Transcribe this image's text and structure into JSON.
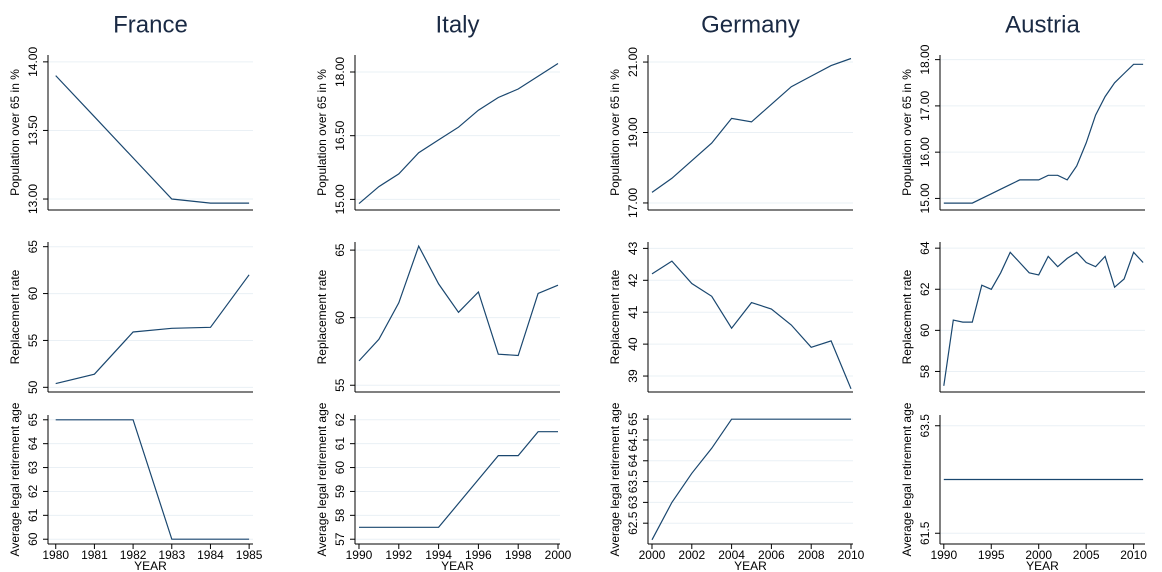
{
  "chart_data": [
    {
      "type": "line",
      "title": "France",
      "ylabel": "Population over 65 in %",
      "x": [
        1980,
        1981,
        1982,
        1983,
        1984,
        1985
      ],
      "values": [
        13.9,
        13.6,
        13.3,
        13.0,
        12.97,
        12.97
      ],
      "xlim": [
        1979.8,
        1985.1
      ],
      "ylim": [
        12.92,
        14.05
      ],
      "yticks": [
        {
          "value": 13,
          "label": "13.00"
        },
        {
          "value": 13.5,
          "label": "13.50"
        },
        {
          "value": 14,
          "label": "14.00"
        }
      ],
      "grid": true,
      "color": "#1a476f"
    },
    {
      "type": "line",
      "title": "Italy",
      "ylabel": "Population over 65 in %",
      "x": [
        1990,
        1991,
        1992,
        1993,
        1994,
        1995,
        1996,
        1997,
        1998,
        1999,
        2000
      ],
      "values": [
        14.9,
        15.3,
        15.6,
        16.1,
        16.4,
        16.7,
        17.1,
        17.4,
        17.6,
        17.9,
        18.2
      ],
      "xlim": [
        1989.8,
        2000.1
      ],
      "ylim": [
        14.75,
        18.4
      ],
      "yticks": [
        {
          "value": 15,
          "label": "15.00"
        },
        {
          "value": 16.5,
          "label": "16.50"
        },
        {
          "value": 18,
          "label": "18.00"
        }
      ],
      "grid": true,
      "color": "#1a476f"
    },
    {
      "type": "line",
      "title": "Germany",
      "ylabel": "Population over 65 in %",
      "x": [
        2000,
        2001,
        2002,
        2003,
        2004,
        2005,
        2006,
        2007,
        2008,
        2009,
        2010
      ],
      "values": [
        17.3,
        17.7,
        18.2,
        18.7,
        19.4,
        19.3,
        19.8,
        20.3,
        20.6,
        20.9,
        21.1
      ],
      "xlim": [
        1999.8,
        2010.1
      ],
      "ylim": [
        16.8,
        21.2
      ],
      "yticks": [
        {
          "value": 17,
          "label": "17.00"
        },
        {
          "value": 19,
          "label": "19.00"
        },
        {
          "value": 21,
          "label": "21.00"
        }
      ],
      "grid": true,
      "color": "#1a476f"
    },
    {
      "type": "line",
      "title": "Austria",
      "ylabel": "Population over 65 in %",
      "x": [
        1990,
        1991,
        1992,
        1993,
        1994,
        1995,
        1996,
        1997,
        1998,
        1999,
        2000,
        2001,
        2002,
        2003,
        2004,
        2005,
        2006,
        2007,
        2008,
        2009,
        2010,
        2011
      ],
      "values": [
        14.9,
        14.9,
        14.9,
        14.9,
        15.0,
        15.1,
        15.2,
        15.3,
        15.4,
        15.4,
        15.4,
        15.5,
        15.5,
        15.4,
        15.7,
        16.2,
        16.8,
        17.2,
        17.5,
        17.7,
        17.9,
        17.9
      ],
      "xlim": [
        1989.6,
        2011.2
      ],
      "ylim": [
        14.75,
        18.1
      ],
      "yticks": [
        {
          "value": 15,
          "label": "15.00"
        },
        {
          "value": 16,
          "label": "16.00"
        },
        {
          "value": 17,
          "label": "17.00"
        },
        {
          "value": 18,
          "label": "18.00"
        }
      ],
      "grid": true,
      "color": "#1a476f"
    },
    {
      "type": "line",
      "ylabel": "Replacement rate",
      "x": [
        1980,
        1981,
        1982,
        1983,
        1984,
        1985
      ],
      "values": [
        50.4,
        51.4,
        55.9,
        56.3,
        56.4,
        62.0
      ],
      "xlim": [
        1979.8,
        1985.1
      ],
      "ylim": [
        49.5,
        65.5
      ],
      "yticks": [
        50,
        55,
        60,
        65
      ],
      "grid": true,
      "color": "#1a476f"
    },
    {
      "type": "line",
      "ylabel": "Replacement rate",
      "x": [
        1990,
        1991,
        1992,
        1993,
        1994,
        1995,
        1996,
        1997,
        1998,
        1999,
        2000
      ],
      "values": [
        56.8,
        58.4,
        61.1,
        65.3,
        62.5,
        60.4,
        61.9,
        57.3,
        57.2,
        61.8,
        62.4
      ],
      "xlim": [
        1989.8,
        2000.1
      ],
      "ylim": [
        54.5,
        65.6
      ],
      "yticks": [
        55,
        60,
        65
      ],
      "grid": true,
      "color": "#1a476f"
    },
    {
      "type": "line",
      "ylabel": "Replacement rate",
      "x": [
        2000,
        2001,
        2002,
        2003,
        2004,
        2005,
        2006,
        2007,
        2008,
        2009,
        2010
      ],
      "values": [
        42.2,
        42.6,
        41.9,
        41.5,
        40.5,
        41.3,
        41.1,
        40.6,
        39.9,
        40.1,
        38.6
      ],
      "xlim": [
        1999.8,
        2010.1
      ],
      "ylim": [
        38.5,
        43.2
      ],
      "yticks": [
        39,
        40,
        41,
        42,
        43
      ],
      "grid": true,
      "color": "#1a476f"
    },
    {
      "type": "line",
      "ylabel": "Replacement rate",
      "x": [
        1990,
        1991,
        1992,
        1993,
        1994,
        1995,
        1996,
        1997,
        1998,
        1999,
        2000,
        2001,
        2002,
        2003,
        2004,
        2005,
        2006,
        2007,
        2008,
        2009,
        2010,
        2011
      ],
      "values": [
        57.3,
        60.5,
        60.4,
        60.4,
        62.2,
        62.0,
        62.8,
        63.8,
        63.3,
        62.8,
        62.7,
        63.6,
        63.1,
        63.5,
        63.8,
        63.3,
        63.1,
        63.6,
        62.1,
        62.5,
        63.8,
        63.3
      ],
      "xlim": [
        1989.6,
        2011.2
      ],
      "ylim": [
        57.0,
        64.3
      ],
      "yticks": [
        58,
        60,
        62,
        64
      ],
      "grid": true,
      "color": "#1a476f"
    },
    {
      "type": "line",
      "ylabel": "Average legal retirement age",
      "xlabel": "YEAR",
      "x": [
        1980,
        1981,
        1982,
        1983,
        1984,
        1985
      ],
      "values": [
        65,
        65,
        65,
        60,
        60,
        60
      ],
      "xlim": [
        1979.8,
        1985.1
      ],
      "ylim": [
        59.8,
        65.2
      ],
      "yticks": [
        60,
        61,
        62,
        63,
        64,
        65
      ],
      "xticks": [
        1980,
        1981,
        1982,
        1983,
        1984,
        1985
      ],
      "grid": true,
      "color": "#1a476f"
    },
    {
      "type": "line",
      "ylabel": "Average legal retirement age",
      "xlabel": "YEAR",
      "x": [
        1990,
        1991,
        1992,
        1993,
        1994,
        1995,
        1996,
        1997,
        1998,
        1999,
        2000
      ],
      "values": [
        57.5,
        57.5,
        57.5,
        57.5,
        57.5,
        58.5,
        59.5,
        60.5,
        60.5,
        61.5,
        61.5
      ],
      "xlim": [
        1989.8,
        2000.1
      ],
      "ylim": [
        56.8,
        62.2
      ],
      "yticks": [
        57,
        58,
        59,
        60,
        61,
        62
      ],
      "xticks": [
        1990,
        1992,
        1994,
        1996,
        1998,
        2000
      ],
      "grid": true,
      "color": "#1a476f"
    },
    {
      "type": "line",
      "ylabel": "Average legal retirement age",
      "xlabel": "YEAR",
      "x": [
        2000,
        2001,
        2002,
        2003,
        2004,
        2005,
        2006,
        2007,
        2008,
        2009,
        2010
      ],
      "values": [
        62.1,
        63,
        63.7,
        64.3,
        65,
        65,
        65,
        65,
        65,
        65,
        65
      ],
      "xlim": [
        1999.8,
        2010.1
      ],
      "ylim": [
        62.0,
        65.1
      ],
      "yticks": [
        62.5,
        63,
        63.5,
        64,
        64.5,
        65
      ],
      "xticks": [
        2000,
        2002,
        2004,
        2006,
        2008,
        2010
      ],
      "grid": true,
      "color": "#1a476f"
    },
    {
      "type": "line",
      "ylabel": "Average legal retirement age",
      "xlabel": "YEAR",
      "x": [
        1990,
        1991,
        1992,
        1993,
        1994,
        1995,
        1996,
        1997,
        1998,
        1999,
        2000,
        2001,
        2002,
        2003,
        2004,
        2005,
        2006,
        2007,
        2008,
        2009,
        2010,
        2011
      ],
      "values": [
        62.5,
        62.5,
        62.5,
        62.5,
        62.5,
        62.5,
        62.5,
        62.5,
        62.5,
        62.5,
        62.5,
        62.5,
        62.5,
        62.5,
        62.5,
        62.5,
        62.5,
        62.5,
        62.5,
        62.5,
        62.5,
        62.5
      ],
      "xlim": [
        1989.6,
        2011.2
      ],
      "ylim": [
        61.3,
        63.7
      ],
      "yticks": [
        61.5,
        63.5
      ],
      "xticks": [
        1990,
        1995,
        2000,
        2005,
        2010
      ],
      "grid": true,
      "color": "#1a476f"
    }
  ]
}
